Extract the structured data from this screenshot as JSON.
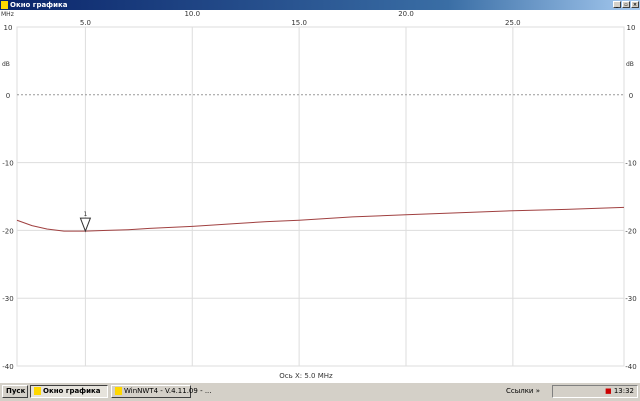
{
  "window": {
    "title": "Окно графика",
    "icon": "app-icon"
  },
  "chart_data": {
    "type": "line",
    "x_unit": "MHz",
    "y_unit": "dB",
    "xlim": [
      1.8,
      30.2
    ],
    "ylim": [
      -40,
      10
    ],
    "x_ticks": [
      "5.0",
      "10.0",
      "15.0",
      "20.0",
      "25.0"
    ],
    "y_ticks": [
      "10",
      "0",
      "-10",
      "-20",
      "-30",
      "-40"
    ],
    "grid": true,
    "reference_line": 0,
    "series": [
      {
        "color": "#a04040",
        "x": [
          1.8,
          2.5,
          3.2,
          4.0,
          5.0,
          6.0,
          7.0,
          8.0,
          10.0,
          12.0,
          13.5,
          15.0,
          17.5,
          20.0,
          22.5,
          25.0,
          27.5,
          30.2
        ],
        "y": [
          -18.5,
          -19.3,
          -19.8,
          -20.1,
          -20.1,
          -20.0,
          -19.9,
          -19.7,
          -19.4,
          -19.0,
          -18.7,
          -18.5,
          -18.0,
          -17.7,
          -17.4,
          -17.1,
          -16.9,
          -16.6
        ]
      }
    ],
    "marker": {
      "label": "1",
      "x": 5.0
    },
    "status": "Ось X: 5.0 MHz"
  },
  "taskbar": {
    "start": "Пуск",
    "buttons": [
      {
        "label": "Окно графика",
        "active": true
      },
      {
        "label": "WinNWT4 - V.4.11.09 - ...",
        "active": false
      }
    ],
    "links": "Ссылки",
    "clock": "13:32"
  }
}
